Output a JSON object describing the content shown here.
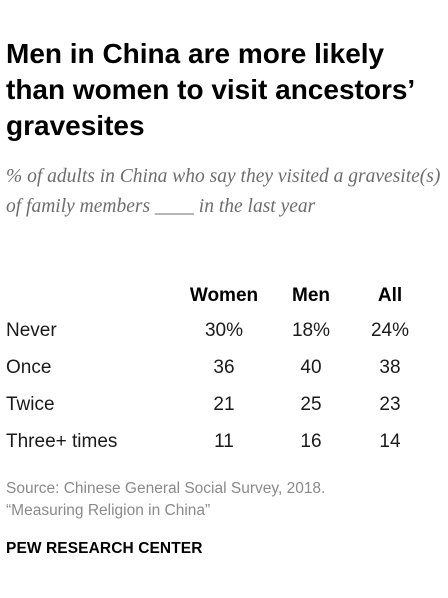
{
  "header": {
    "title": "Men in China are more likely than women to visit ancestors’ gravesites",
    "subtitle": "% of adults in China who say they visited a gravesite(s) of family members ____ in the last year"
  },
  "chart_data": {
    "type": "table",
    "title": "Men in China are more likely than women to visit ancestors’ gravesites",
    "subtitle": "% of adults in China who say they visited a gravesite(s) of family members ____ in the last year",
    "columns": [
      "Women",
      "Men",
      "All"
    ],
    "rows": [
      {
        "label": "Never",
        "values": [
          "30%",
          "18%",
          "24%"
        ]
      },
      {
        "label": "Once",
        "values": [
          "36",
          "40",
          "38"
        ]
      },
      {
        "label": "Twice",
        "values": [
          "21",
          "25",
          "23"
        ]
      },
      {
        "label": "Three+ times",
        "values": [
          "11",
          "16",
          "14"
        ]
      }
    ]
  },
  "source": {
    "line1": "Source: Chinese General Social Survey, 2018.",
    "line2": "“Measuring Religion in China”"
  },
  "footer": {
    "org": "PEW RESEARCH CENTER"
  }
}
